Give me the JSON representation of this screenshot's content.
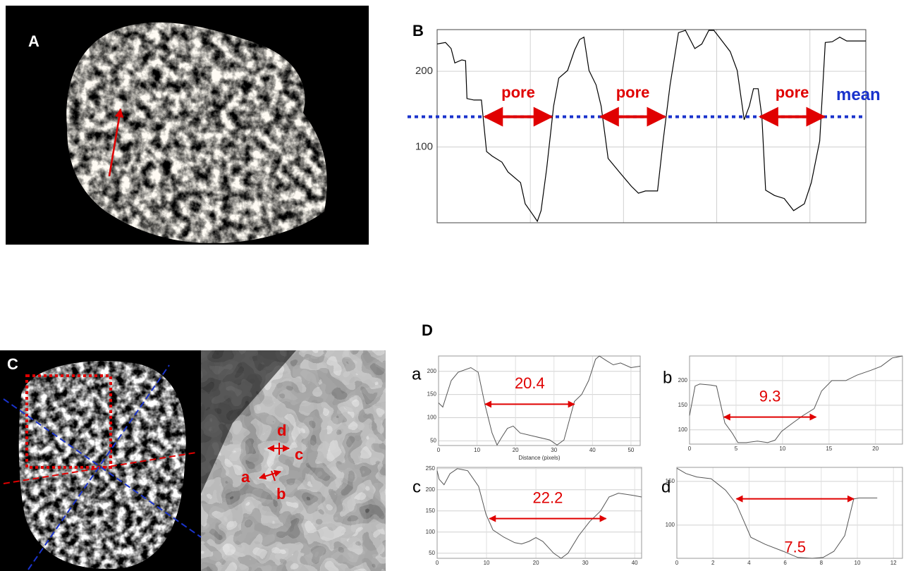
{
  "figure": {
    "panel_labels": [
      "A",
      "B",
      "C",
      "D"
    ],
    "image_c_labels": [
      "d",
      "c",
      "a",
      "b"
    ]
  },
  "chart_data": [
    {
      "type": "line",
      "color": "#000000",
      "x": [
        0,
        1.8,
        3,
        3.8,
        5.3,
        6.1,
        6.4,
        7.9,
        9.5,
        10.6,
        11.8,
        13.9,
        15.2,
        17.9,
        18.9,
        20.5,
        21.5,
        22.3,
        23.5,
        25,
        26.1,
        28,
        29.5,
        30.6,
        31.5,
        32.6,
        34.1,
        35.2,
        36.7,
        39.1,
        41.7,
        43.2,
        44.7,
        47.3,
        48.5,
        50,
        51.8,
        53.3,
        55.3,
        56.8,
        58.3,
        59.4,
        61.4,
        62.9,
        64.4,
        65.9,
        67,
        67.9,
        68.9,
        69.7,
        70.5,
        72.4,
        74.5,
        76.5,
        78.8,
        80.3,
        82.1,
        83.3,
        84.8,
        86.4,
        87.9,
        92
      ],
      "values": [
        236,
        238,
        230,
        211,
        215,
        214,
        164,
        162,
        162,
        94,
        88,
        80,
        67,
        53,
        25,
        11,
        2,
        16,
        71,
        154,
        191,
        201,
        228,
        242,
        245,
        201,
        182,
        154,
        85,
        67,
        48,
        39,
        42,
        42,
        108,
        182,
        251,
        254,
        230,
        236,
        254,
        254,
        238,
        226,
        201,
        136,
        154,
        177,
        177,
        140,
        43,
        36,
        32,
        16,
        25,
        53,
        108,
        238,
        239,
        245,
        240,
        240
      ],
      "xlim": [
        0,
        92
      ],
      "xgrid": [
        20,
        40,
        60,
        80
      ],
      "ylim": [
        0,
        255
      ],
      "yticks": [
        100,
        200
      ],
      "grid": true,
      "mean_line": {
        "label": "mean",
        "value": 140,
        "color": "#1a33cc"
      },
      "arrows": [
        {
          "label": "pore",
          "x": [
            10.3,
            24.5
          ],
          "y": 140
        },
        {
          "label": "pore",
          "x": [
            35.2,
            48.8
          ],
          "y": 140
        },
        {
          "label": "pore",
          "x": [
            69.4,
            83
          ],
          "y": 140
        }
      ]
    },
    {
      "type": "line",
      "panel": "a",
      "color": "#555555",
      "xlabel": "Distance (pixels)",
      "x": [
        0,
        1.1,
        3.3,
        5.1,
        8.4,
        10.3,
        12.1,
        13.9,
        15.2,
        16.5,
        17.9,
        19.4,
        21.2,
        25.3,
        28.9,
        30.8,
        32.6,
        35.3,
        37.2,
        39,
        40.8,
        41.8,
        43.6,
        45.4,
        47.3,
        50,
        52.4
      ],
      "values": [
        132,
        123,
        180,
        198,
        208,
        198,
        127,
        67,
        41,
        59,
        77,
        82,
        67,
        59,
        52,
        41,
        52,
        135,
        150,
        180,
        226,
        233,
        223,
        214,
        218,
        208,
        211
      ],
      "xlim": [
        0,
        52.4
      ],
      "xticks": [
        0,
        10,
        20,
        30,
        40,
        50
      ],
      "ylim": [
        40,
        233
      ],
      "yticks": [
        50,
        100,
        150,
        200
      ],
      "grid": true,
      "arrows": [
        {
          "label": "20.4",
          "x": [
            12.1,
            35.3
          ],
          "y": 129
        }
      ]
    },
    {
      "type": "line",
      "panel": "b",
      "color": "#555555",
      "x": [
        0,
        0.6,
        1.1,
        2.3,
        2.9,
        3.8,
        4.6,
        5.2,
        6.1,
        7.3,
        8.4,
        9.2,
        9.9,
        11.1,
        12.2,
        13.4,
        14.2,
        15.3,
        16.8,
        18,
        19.5,
        20.6,
        21.8,
        22.9
      ],
      "values": [
        129,
        189,
        193,
        191,
        189,
        114,
        93,
        74,
        74,
        77,
        74,
        79,
        97,
        114,
        129,
        143,
        179,
        200,
        200,
        211,
        221,
        229,
        246,
        250
      ],
      "xlim": [
        0,
        22.9
      ],
      "xticks": [
        0,
        5,
        10,
        15,
        20
      ],
      "ylim": [
        71,
        250
      ],
      "yticks": [
        100,
        150,
        200
      ],
      "grid": true,
      "arrows": [
        {
          "label": "9.3",
          "x": [
            3.7,
            13.6
          ],
          "y": 126
        }
      ]
    },
    {
      "type": "line",
      "panel": "c",
      "color": "#555555",
      "x": [
        0,
        0.4,
        1.4,
        2.6,
        4.1,
        6.2,
        8.4,
        9.9,
        11.3,
        13.5,
        15.7,
        17.1,
        18.6,
        20,
        21.4,
        23.6,
        25.1,
        26.5,
        28.7,
        30.9,
        33.1,
        34.8,
        36.7,
        39.6,
        41.4
      ],
      "values": [
        245,
        225,
        212,
        238,
        250,
        245,
        208,
        142,
        105,
        88,
        75,
        72,
        78,
        87,
        78,
        50,
        38,
        50,
        92,
        125,
        150,
        183,
        192,
        187,
        183
      ],
      "xlim": [
        0,
        41.4
      ],
      "xticks": [
        0,
        10,
        20,
        30,
        40
      ],
      "ylim": [
        38,
        253
      ],
      "yticks": [
        50,
        100,
        150,
        200,
        250
      ],
      "grid": true,
      "arrows": [
        {
          "label": "22.2",
          "x": [
            10.6,
            34.2
          ],
          "y": 132
        }
      ]
    },
    {
      "type": "line",
      "panel": "d",
      "color": "#555555",
      "x": [
        0,
        0.5,
        1.1,
        1.9,
        2.7,
        3.3,
        4.1,
        4.9,
        5.9,
        6.7,
        7.5,
        8.1,
        8.7,
        9.3,
        9.8,
        10.1,
        11.1
      ],
      "values": [
        165,
        159,
        155,
        153,
        140,
        124,
        86,
        78,
        70,
        63,
        62,
        63,
        70,
        88,
        130,
        131,
        131
      ],
      "xlim": [
        0,
        12.5
      ],
      "xticks": [
        0,
        2,
        4,
        6,
        8,
        10,
        12
      ],
      "ylim": [
        62,
        166
      ],
      "yticks": [
        100,
        150
      ],
      "grid": true,
      "arrows": [
        {
          "label": "7.5",
          "x": [
            3.3,
            9.8
          ],
          "y": 130,
          "label_below": true
        }
      ]
    }
  ]
}
